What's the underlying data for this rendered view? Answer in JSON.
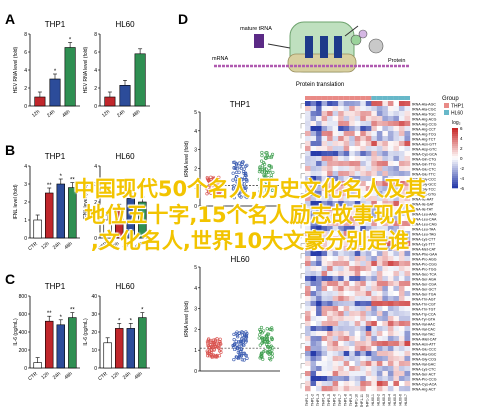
{
  "panels": {
    "A": {
      "letter": "A",
      "charts": [
        {
          "title": "THP1",
          "ylabel": "HEV RNA level (fold)",
          "categories": [
            "12h",
            "24h",
            "48h"
          ],
          "values": [
            1,
            3,
            6.5
          ],
          "ylim": [
            0,
            8
          ],
          "yticks": [
            "0",
            "2",
            "4",
            "6",
            "8"
          ],
          "colors": [
            "#c0262b",
            "#2c4c9a",
            "#2f8f52"
          ],
          "stars": [
            "",
            "*",
            "*"
          ]
        },
        {
          "title": "HL60",
          "ylabel": "HEV RNA level (fold)",
          "categories": [
            "12h",
            "24h",
            "48h"
          ],
          "values": [
            1,
            2.3,
            5.8
          ],
          "ylim": [
            0,
            8
          ],
          "yticks": [
            "0",
            "2",
            "4",
            "6",
            "8"
          ],
          "colors": [
            "#c0262b",
            "#2c4c9a",
            "#2f8f52"
          ],
          "stars": [
            "",
            "",
            ""
          ]
        }
      ]
    },
    "B": {
      "letter": "B",
      "charts": [
        {
          "title": "THP1",
          "ylabel": "IFNL level (fold)",
          "categories": [
            "CTR",
            "12h",
            "24h",
            "48h"
          ],
          "values": [
            1,
            2.5,
            3,
            2.8
          ],
          "ylim": [
            0,
            4
          ],
          "yticks": [
            "0",
            "1",
            "2",
            "3",
            "4"
          ],
          "colors": [
            "#ffffff",
            "#c0262b",
            "#2c4c9a",
            "#2f8f52"
          ],
          "stars": [
            "",
            "**",
            "*",
            "**"
          ]
        },
        {
          "title": "HL60",
          "ylabel": "IFNL level (fold)",
          "categories": [
            "CTR",
            "12h",
            "24h",
            "48h"
          ],
          "values": [
            1,
            1.6,
            2.2,
            2
          ],
          "ylim": [
            0,
            4
          ],
          "yticks": [
            "0",
            "1",
            "2",
            "3",
            "4"
          ],
          "colors": [
            "#ffffff",
            "#c0262b",
            "#2c4c9a",
            "#2f8f52"
          ],
          "stars": [
            "",
            "",
            "",
            ""
          ]
        }
      ]
    },
    "C": {
      "letter": "C",
      "charts": [
        {
          "title": "THP1",
          "ylabel": "IL-6 (pg/mL)",
          "categories": [
            "CTR",
            "12h",
            "24h",
            "48h"
          ],
          "values": [
            60,
            520,
            480,
            560
          ],
          "ylim": [
            0,
            800
          ],
          "yticks": [
            "0",
            "200",
            "400",
            "600",
            "800"
          ],
          "colors": [
            "#ffffff",
            "#c0262b",
            "#2c4c9a",
            "#2f8f52"
          ],
          "stars": [
            "",
            "**",
            "*",
            "**"
          ]
        },
        {
          "title": "HL60",
          "ylabel": "IL-6 (pg/mL)",
          "categories": [
            "CTR",
            "12h",
            "24h",
            "48h"
          ],
          "values": [
            14,
            22,
            22,
            28
          ],
          "ylim": [
            0,
            40
          ],
          "yticks": [
            "0",
            "10",
            "20",
            "30",
            "40"
          ],
          "colors": [
            "#ffffff",
            "#c0262b",
            "#2c4c9a",
            "#2f8f52"
          ],
          "stars": [
            "",
            "*",
            "*",
            "*"
          ]
        }
      ]
    },
    "D": {
      "letter": "D",
      "diagram": {
        "label_trna": "mature tRNA",
        "label_mrna": "mRNA",
        "label_protein": "Protein",
        "label_translation": "Protein translation"
      },
      "scatter": [
        {
          "title": "THP1",
          "ylabel": "tRNA level (fold)",
          "yticks": [
            "0",
            "1",
            "2",
            "3",
            "4",
            "5"
          ]
        },
        {
          "title": "HL60",
          "ylabel": "tRNA level (fold)",
          "yticks": [
            "0",
            "1",
            "2",
            "3",
            "4",
            "5"
          ]
        }
      ],
      "heatmap": {
        "legend_title": "Group",
        "legend_items": [
          "THP1",
          "HL60"
        ],
        "legend_colors": [
          "#e98a86",
          "#67b8c9"
        ],
        "scale_title": "log₂",
        "scale_ticks": [
          "6",
          "4",
          "2",
          "0",
          "-2",
          "-4",
          "-6"
        ],
        "row_labels": [
          "tRNA-Ala-AGC",
          "tRNA-Ala-CGC",
          "tRNA-Ala-TGC",
          "tRNA-Arg-ACG",
          "tRNA-Arg-CCG",
          "tRNA-Arg-CCT",
          "tRNA-Arg-TCG",
          "tRNA-Arg-TCT",
          "tRNA-Asn-GTT",
          "tRNA-Asp-GTC",
          "tRNA-Cys-GCA",
          "tRNA-Gln-CTG",
          "tRNA-Gln-TTG",
          "tRNA-Glu-CTC",
          "tRNA-Glu-TTC",
          "tRNA-Gly-CCC",
          "tRNA-Gly-GCC",
          "tRNA-Gly-TCC",
          "tRNA-His-GTG",
          "tRNA-Ile-AAT",
          "tRNA-Ile-GAT",
          "tRNA-Ile-TAT",
          "tRNA-Leu-AAG",
          "tRNA-Leu-CAA",
          "tRNA-Leu-CAG",
          "tRNA-Leu-TAA",
          "tRNA-Leu-TAG",
          "tRNA-Lys-CTT",
          "tRNA-Lys-TTT",
          "tRNA-Met-CAT",
          "tRNA-Phe-GAA",
          "tRNA-Pro-AGG",
          "tRNA-Pro-CGG",
          "tRNA-Pro-TGG",
          "tRNA-Sec-TCA",
          "tRNA-Ser-AGA",
          "tRNA-Ser-CGA",
          "tRNA-Ser-GCT",
          "tRNA-Ser-TGA",
          "tRNA-Thr-AGT",
          "tRNA-Thr-CGT",
          "tRNA-Thr-TGT",
          "tRNA-Trp-CCA",
          "tRNA-Tyr-GTA",
          "tRNA-Val-AAC",
          "tRNA-Val-CAC",
          "tRNA-Val-TAC",
          "tRNA-iMet-CAT",
          "tRNA-Asn-ATT",
          "tRNA-Glu-CCC",
          "tRNA-Ala-GGC",
          "tRNA-Gly-CCG",
          "tRNA-Val-GAC",
          "tRNA-Lys-CTC",
          "tRNA-Ser-ACT",
          "tRNA-Pro-CCG",
          "tRNA-Cys-ACA",
          "tRNA-Arg-ACT"
        ],
        "col_labels": [
          "THP1-1",
          "THP1-2",
          "THP1-3",
          "THP1-4",
          "THP1-5",
          "THP1-6",
          "THP1-7",
          "THP1-8",
          "THP1-9",
          "THP1-10",
          "THP1-11",
          "THP1-12",
          "HL60-1",
          "HL60-2",
          "HL60-3",
          "HL60-4",
          "HL60-5",
          "HL60-6",
          "HL60-7"
        ]
      }
    }
  },
  "overlay": [
    "中国现代50个名人,历史文化名人及其",
    "地位五十字,15个名人励志故事现代",
    ",文化名人,世界10大文豪分别是谁"
  ]
}
